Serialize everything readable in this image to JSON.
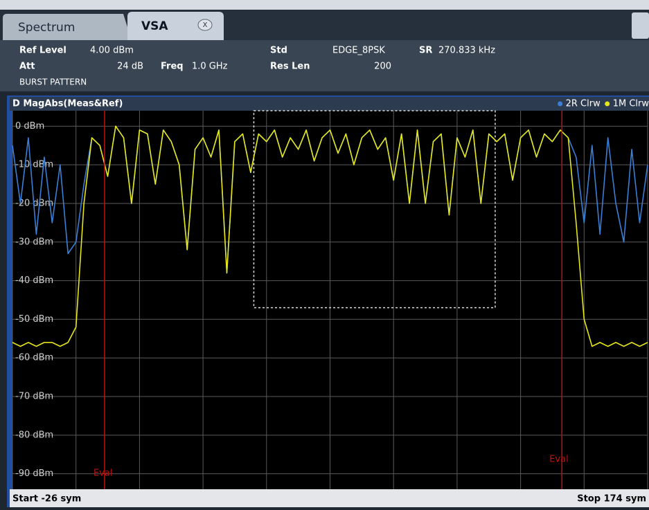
{
  "tabs": [
    "Spectrum",
    "VSA"
  ],
  "header": {
    "items": [
      {
        "label": "Ref Level",
        "value": "4.00 dBm"
      },
      {
        "label": "Att",
        "value": "24 dB"
      },
      {
        "label": "Freq",
        "value": "1.0 GHz"
      },
      {
        "label": "Std",
        "value": "EDGE_8PSK"
      },
      {
        "label": "Res Len",
        "value": "200"
      },
      {
        "label": "SR",
        "value": "270.833 kHz"
      }
    ],
    "mode": "BURST PATTERN"
  },
  "chart_data": {
    "type": "line",
    "title": "D MagAbs(Meas&Ref)",
    "start_label": "Start -26 sym",
    "stop_label": "Stop 174 sym",
    "xlim": [
      -26,
      174
    ],
    "xticks": [
      -26,
      -6,
      14,
      34,
      54,
      74,
      94,
      114,
      134,
      154,
      174
    ],
    "ylim": [
      -94,
      4
    ],
    "yticks": [
      {
        "value": 0,
        "label": "0 dBm"
      },
      {
        "value": -10,
        "label": "-10 dBm"
      },
      {
        "value": -20,
        "label": "-20 dBm"
      },
      {
        "value": -30,
        "label": "-30 dBm"
      },
      {
        "value": -40,
        "label": "-40 dBm"
      },
      {
        "value": -50,
        "label": "-50 dBm"
      },
      {
        "value": -60,
        "label": "-60 dBm"
      },
      {
        "value": -70,
        "label": "-70 dBm"
      },
      {
        "value": -80,
        "label": "-80 dBm"
      },
      {
        "value": -90,
        "label": "-90 dBm"
      }
    ],
    "grid": true,
    "legend": "top-right",
    "eval_lines": [
      {
        "label": "Eval",
        "x": 3
      },
      {
        "label": "Eval",
        "x": 147
      }
    ],
    "zoom_box": {
      "x": [
        50,
        126
      ],
      "y": [
        -47,
        4
      ]
    },
    "x": [
      -26,
      -23.5,
      -21,
      -18.5,
      -16,
      -13.5,
      -11,
      -8.5,
      -6,
      -3.5,
      -1,
      1.5,
      4,
      6.5,
      9,
      11.5,
      14,
      16.5,
      19,
      21.5,
      24,
      26.5,
      29,
      31.5,
      34,
      36.5,
      39,
      41.5,
      44,
      46.5,
      49,
      51.5,
      54,
      56.5,
      59,
      61.5,
      64,
      66.5,
      69,
      71.5,
      74,
      76.5,
      79,
      81.5,
      84,
      86.5,
      89,
      91.5,
      94,
      96.5,
      99,
      101.5,
      104,
      106.5,
      109,
      111.5,
      114,
      116.5,
      119,
      121.5,
      124,
      126.5,
      129,
      131.5,
      134,
      136.5,
      139,
      141.5,
      144,
      146.5,
      149,
      151.5,
      154,
      156.5,
      159,
      161.5,
      164,
      166.5,
      169,
      171.5,
      174
    ],
    "series": [
      {
        "name": "2R Clrw",
        "color": "#3a7fd8",
        "values": [
          -5,
          -20,
          -3,
          -28,
          -8,
          -25,
          -10,
          -33,
          -30,
          -15,
          -3,
          -5,
          -13,
          0,
          -3,
          -20,
          -1,
          -2,
          -15,
          -1,
          -4,
          -10,
          -32,
          -6,
          -3,
          -8,
          -1,
          -38,
          -4,
          -2,
          -12,
          -2,
          -4,
          -1,
          -8,
          -3,
          -6,
          -1,
          -9,
          -3,
          -1,
          -7,
          -2,
          -10,
          -3,
          -1,
          -6,
          -3,
          -14,
          -2,
          -20,
          -1,
          -20,
          -4,
          -2,
          -23,
          -3,
          -8,
          -1,
          -20,
          -2,
          -4,
          -2,
          -14,
          -3,
          -1,
          -8,
          -2,
          -4,
          -1,
          -3,
          -8,
          -25,
          -5,
          -28,
          -3,
          -20,
          -30,
          -6,
          -25,
          -10
        ]
      },
      {
        "name": "1M Clrw",
        "color": "#e6e619",
        "values": [
          -56,
          -57,
          -56,
          -57,
          -56,
          -56,
          -57,
          -56,
          -52,
          -20,
          -3,
          -5,
          -13,
          0,
          -3,
          -20,
          -1,
          -2,
          -15,
          -1,
          -4,
          -10,
          -32,
          -6,
          -3,
          -8,
          -1,
          -38,
          -4,
          -2,
          -12,
          -2,
          -4,
          -1,
          -8,
          -3,
          -6,
          -1,
          -9,
          -3,
          -1,
          -7,
          -2,
          -10,
          -3,
          -1,
          -6,
          -3,
          -14,
          -2,
          -20,
          -1,
          -20,
          -4,
          -2,
          -23,
          -3,
          -8,
          -1,
          -20,
          -2,
          -4,
          -2,
          -14,
          -3,
          -1,
          -8,
          -2,
          -4,
          -1,
          -3,
          -25,
          -50,
          -57,
          -56,
          -57,
          -56,
          -57,
          -56,
          -57,
          -56
        ]
      }
    ]
  }
}
